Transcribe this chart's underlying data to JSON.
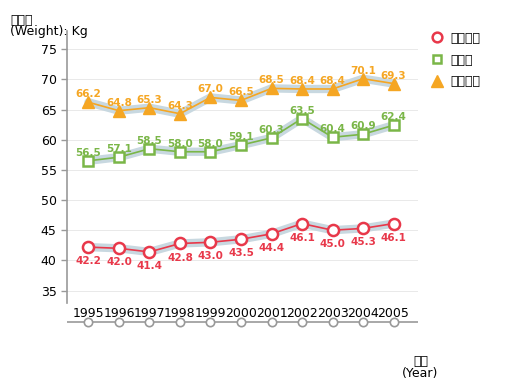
{
  "years": [
    1995,
    1996,
    1997,
    1998,
    1999,
    2000,
    2001,
    2002,
    2003,
    2004,
    2005
  ],
  "elementary": [
    42.2,
    42.0,
    41.4,
    42.8,
    43.0,
    43.5,
    44.4,
    46.1,
    45.0,
    45.3,
    46.1
  ],
  "middle": [
    56.5,
    57.1,
    58.5,
    58.0,
    58.0,
    59.1,
    60.3,
    63.5,
    60.4,
    60.9,
    62.4
  ],
  "high": [
    66.2,
    64.8,
    65.3,
    64.3,
    67.0,
    66.5,
    68.5,
    68.4,
    68.4,
    70.1,
    69.3
  ],
  "elementary_color": "#e8384a",
  "middle_color": "#7ab648",
  "high_color": "#f5a623",
  "shadow_color": "#c8d8e0",
  "axis_line_color": "#999999",
  "bg_color": "#ffffff",
  "ylabel_line1": "몸무계",
  "ylabel_line2": "(Weight): Kg",
  "xlabel_line1": "연도",
  "xlabel_line2": "(Year)",
  "legend_elementary": "초등학교",
  "legend_middle": "중학교",
  "legend_high": "고등학교",
  "ylim": [
    33,
    78
  ],
  "yticks": [
    35,
    40,
    45,
    50,
    55,
    60,
    65,
    70,
    75
  ],
  "title_fontsize": 9,
  "label_fontsize": 7.5,
  "tick_fontsize": 9,
  "legend_fontsize": 9
}
